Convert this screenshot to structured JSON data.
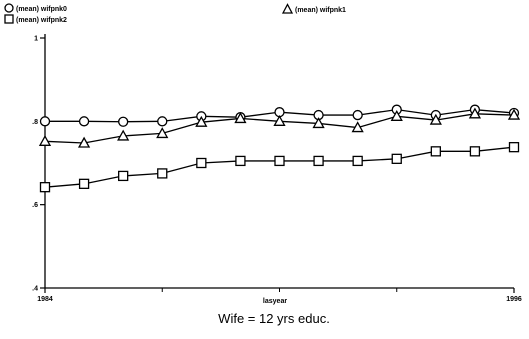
{
  "chart_data": {
    "type": "line",
    "title": "",
    "subtitle": "Wife = 12 yrs educ.",
    "xlabel": "lasyear",
    "ylabel": "",
    "xlim": [
      1984,
      1996
    ],
    "ylim": [
      0.4,
      1.0
    ],
    "x_tick_labels": [
      "1984",
      "1996"
    ],
    "y_ticks": [
      0.4,
      0.6,
      0.8,
      1.0
    ],
    "y_tick_labels": [
      ".4",
      ".6",
      ".8",
      "1"
    ],
    "x": [
      1984,
      1985,
      1986,
      1987,
      1988,
      1989,
      1990,
      1991,
      1992,
      1993,
      1994,
      1995,
      1996
    ],
    "series": [
      {
        "name": "(mean) wifpnk0",
        "marker": "circle",
        "values": [
          0.8,
          0.8,
          0.799,
          0.8,
          0.812,
          0.81,
          0.822,
          0.815,
          0.815,
          0.828,
          0.815,
          0.828,
          0.82
        ]
      },
      {
        "name": "(mean) wifpnk1",
        "marker": "triangle",
        "values": [
          0.752,
          0.748,
          0.765,
          0.771,
          0.798,
          0.807,
          0.8,
          0.795,
          0.785,
          0.812,
          0.803,
          0.818,
          0.815
        ]
      },
      {
        "name": "(mean) wifpnk2",
        "marker": "square",
        "values": [
          0.642,
          0.65,
          0.669,
          0.675,
          0.7,
          0.705,
          0.705,
          0.705,
          0.705,
          0.71,
          0.728,
          0.728,
          0.738
        ]
      }
    ],
    "legend_position": "top"
  }
}
